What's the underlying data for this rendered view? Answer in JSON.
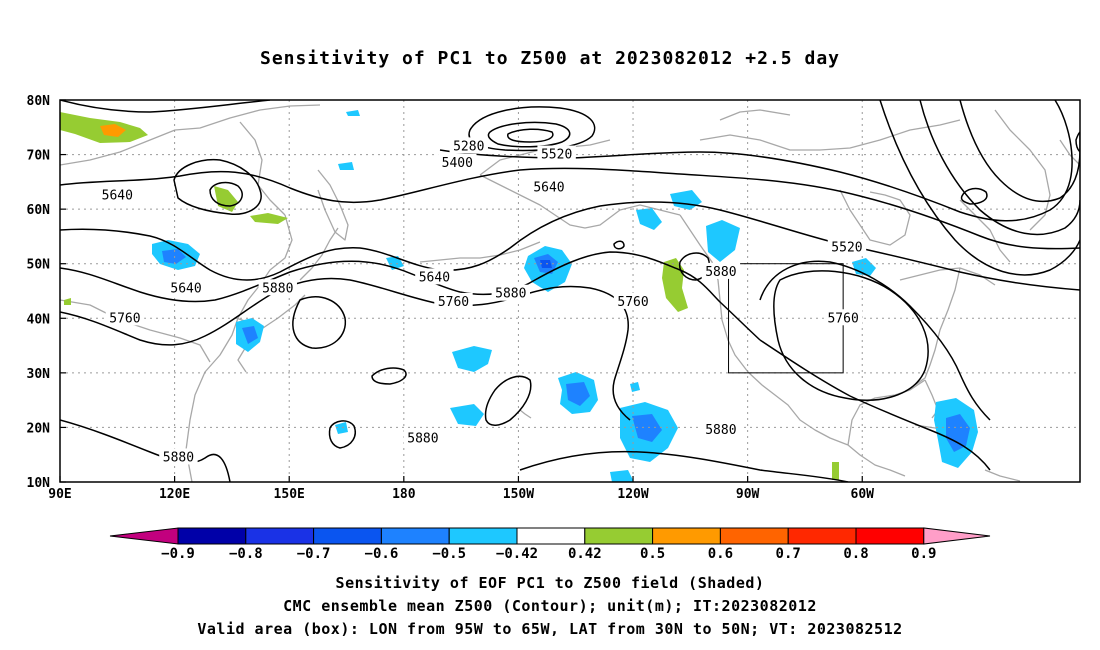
{
  "title": "Sensitivity of PC1 to Z500 at 2023082012 +2.5 day",
  "lat_labels": [
    "80N",
    "70N",
    "60N",
    "50N",
    "40N",
    "30N",
    "20N",
    "10N"
  ],
  "lon_labels": [
    "90E",
    "120E",
    "150E",
    "180",
    "150W",
    "120W",
    "90W",
    "60W"
  ],
  "contour_labels": [
    {
      "text": "5280",
      "lon": -163,
      "lat": 71.5
    },
    {
      "text": "5400",
      "lon": -166,
      "lat": 68.5
    },
    {
      "text": "5520",
      "lon": -140,
      "lat": 70
    },
    {
      "text": "5640",
      "lon": -142,
      "lat": 64
    },
    {
      "text": "5640",
      "lon": 105,
      "lat": 62.5
    },
    {
      "text": "5640",
      "lon": 123,
      "lat": 45.5
    },
    {
      "text": "5640",
      "lon": -172,
      "lat": 47.5
    },
    {
      "text": "5760",
      "lon": 107,
      "lat": 40
    },
    {
      "text": "5760",
      "lon": -167,
      "lat": 43
    },
    {
      "text": "5760",
      "lon": -120,
      "lat": 43
    },
    {
      "text": "5760",
      "lon": -65,
      "lat": 40
    },
    {
      "text": "5880",
      "lon": 147,
      "lat": 45.5
    },
    {
      "text": "5880",
      "lon": -152,
      "lat": 44.5
    },
    {
      "text": "5880",
      "lon": -97,
      "lat": 48.5
    },
    {
      "text": "5880",
      "lon": -175,
      "lat": 18
    },
    {
      "text": "5880",
      "lon": -97,
      "lat": 19.5
    },
    {
      "text": "5880",
      "lon": 121,
      "lat": 14.5
    },
    {
      "text": "5520",
      "lon": -64,
      "lat": 53
    }
  ],
  "colorbar": {
    "labels": [
      "-0.9",
      "-0.8",
      "-0.7",
      "-0.6",
      "-0.5",
      "-0.42",
      "0.42",
      "0.5",
      "0.6",
      "0.7",
      "0.8",
      "0.9"
    ],
    "colors": [
      "#c2007e",
      "#0000a8",
      "#1a32e6",
      "#0a55f0",
      "#1e82ff",
      "#1ec8ff",
      "#ffffff",
      "#96cc32",
      "#ff9a00",
      "#ff6400",
      "#ff2800",
      "#ff0000",
      "#ff9ec8"
    ]
  },
  "valid_box": {
    "lon_west": -95,
    "lon_east": -65,
    "lat_south": 30,
    "lat_north": 50
  },
  "captions": [
    "Sensitivity of EOF PC1 to Z500 field (Shaded)",
    "CMC ensemble mean Z500 (Contour); unit(m); IT:2023082012",
    "Valid area (box): LON from 95W to 65W, LAT from 30N to 50N; VT: 2023082512"
  ]
}
